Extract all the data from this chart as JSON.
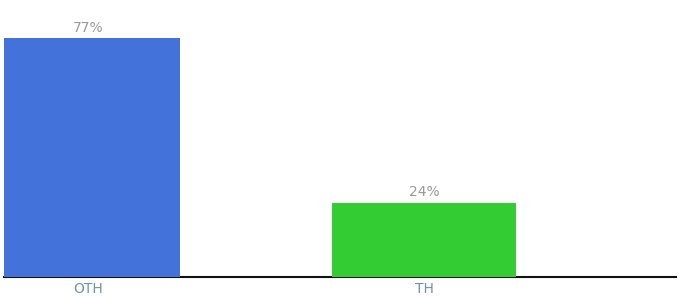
{
  "categories": [
    "OTH",
    "TH"
  ],
  "values": [
    77,
    24
  ],
  "bar_colors": [
    "#4472db",
    "#33cc33"
  ],
  "background_color": "#ffffff",
  "ylim": [
    0,
    88
  ],
  "bar_width": 0.55,
  "label_fontsize": 10,
  "tick_fontsize": 10,
  "tick_color": "#7090b0",
  "label_color": "#999999",
  "spine_color": "#111111",
  "xlim": [
    -0.25,
    1.75
  ]
}
